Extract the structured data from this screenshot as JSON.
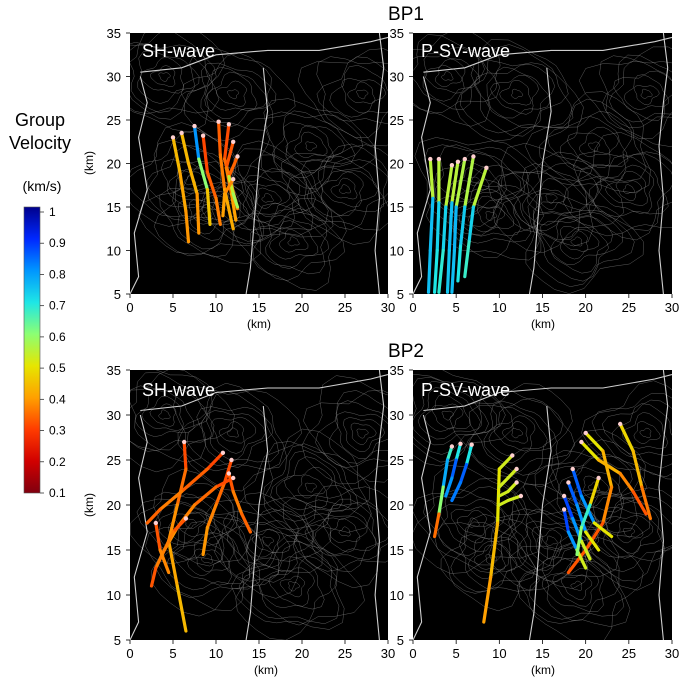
{
  "legend": {
    "title_line1": "Group",
    "title_line2": "Velocity",
    "unit": "(km/s)",
    "ticks": [
      "1",
      "0.9",
      "0.8",
      "0.7",
      "0.6",
      "0.5",
      "0.4",
      "0.3",
      "0.2",
      "0.1"
    ],
    "range": [
      0.1,
      1.0
    ],
    "colormap": "jet",
    "colors": [
      "#80000f",
      "#d10000",
      "#ff3c00",
      "#ffa000",
      "#e6e600",
      "#8cff73",
      "#1ee6e6",
      "#0096ff",
      "#0028ff",
      "#00008c"
    ]
  },
  "sections": [
    {
      "label": "BP1"
    },
    {
      "label": "BP2"
    }
  ],
  "axes": {
    "xlabel": "(km)",
    "ylabel": "(km)",
    "xticks": [
      "0",
      "5",
      "10",
      "15",
      "20",
      "25",
      "30"
    ],
    "yticks": [
      "5",
      "10",
      "15",
      "20",
      "25",
      "30",
      "35"
    ],
    "xlim": [
      0,
      30
    ],
    "ylim": [
      5,
      35
    ]
  },
  "chart_data": [
    {
      "type": "line",
      "section": "BP1",
      "panel_label": "SH-wave",
      "xlim": [
        0,
        30
      ],
      "ylim": [
        5,
        35
      ],
      "series": [
        {
          "x": [
            5.0,
            5.8,
            6.5,
            6.8
          ],
          "y": [
            23.0,
            19.0,
            14.5,
            11.0
          ],
          "v": [
            0.45,
            0.42,
            0.4,
            0.38
          ]
        },
        {
          "x": [
            6.0,
            6.8,
            7.8,
            8.0
          ],
          "y": [
            23.5,
            20.0,
            16.5,
            12.0
          ],
          "v": [
            0.42,
            0.45,
            0.4,
            0.38
          ]
        },
        {
          "x": [
            7.5,
            8.0,
            9.0,
            9.3
          ],
          "y": [
            24.3,
            20.5,
            17.0,
            13.0
          ],
          "v": [
            0.9,
            0.7,
            0.5,
            0.4
          ]
        },
        {
          "x": [
            8.5,
            9.0,
            10.0,
            10.5
          ],
          "y": [
            23.2,
            19.0,
            16.0,
            13.0
          ],
          "v": [
            0.3,
            0.32,
            0.35,
            0.38
          ]
        },
        {
          "x": [
            10.3,
            10.5,
            11.0,
            12.0
          ],
          "y": [
            24.8,
            21.0,
            17.0,
            12.5
          ],
          "v": [
            0.32,
            0.35,
            0.38,
            0.45
          ]
        },
        {
          "x": [
            11.5,
            11.0,
            11.8,
            12.5
          ],
          "y": [
            24.5,
            20.5,
            17.5,
            14.8
          ],
          "v": [
            0.3,
            0.33,
            0.36,
            0.38
          ]
        },
        {
          "x": [
            12.0,
            11.2,
            11.8,
            12.3
          ],
          "y": [
            22.5,
            19.5,
            16.5,
            13.5
          ],
          "v": [
            0.3,
            0.35,
            0.38,
            0.42
          ]
        },
        {
          "x": [
            12.5,
            11.5,
            12.0,
            12.5
          ],
          "y": [
            20.8,
            18.5,
            16.5,
            15.0
          ],
          "v": [
            0.3,
            0.38,
            0.7,
            0.45
          ]
        },
        {
          "x": [
            12.0,
            11.0,
            10.8
          ],
          "y": [
            18.2,
            16.5,
            14.0
          ],
          "v": [
            0.35,
            0.4,
            0.4
          ]
        }
      ]
    },
    {
      "type": "line",
      "section": "BP1",
      "panel_label": "P-SV-wave",
      "xlim": [
        0,
        30
      ],
      "ylim": [
        5,
        35
      ],
      "series": [
        {
          "x": [
            2.0,
            2.3,
            2.0,
            1.8
          ],
          "y": [
            20.5,
            16.0,
            10.0,
            5.2
          ],
          "v": [
            0.4,
            0.7,
            0.8,
            0.7
          ]
        },
        {
          "x": [
            3.0,
            3.0,
            2.8,
            2.5
          ],
          "y": [
            20.5,
            15.5,
            10.0,
            5.2
          ],
          "v": [
            0.4,
            0.7,
            0.75,
            0.65
          ]
        },
        {
          "x": [
            4.5,
            3.8,
            3.5,
            3.0
          ],
          "y": [
            19.8,
            15.0,
            10.0,
            5.2
          ],
          "v": [
            0.4,
            0.7,
            0.75,
            0.62
          ]
        },
        {
          "x": [
            5.2,
            4.5,
            4.2,
            4.0
          ],
          "y": [
            20.2,
            15.5,
            10.0,
            5.2
          ],
          "v": [
            0.4,
            0.7,
            0.8,
            0.68
          ]
        },
        {
          "x": [
            6.0,
            5.0,
            4.8,
            4.5
          ],
          "y": [
            20.5,
            15.0,
            10.0,
            5.2
          ],
          "v": [
            0.4,
            0.72,
            0.8,
            0.7
          ]
        },
        {
          "x": [
            7.0,
            6.0,
            5.5,
            5.2
          ],
          "y": [
            20.8,
            15.0,
            10.5,
            6.5
          ],
          "v": [
            0.4,
            0.72,
            0.75,
            0.65
          ]
        },
        {
          "x": [
            8.5,
            7.0,
            6.5,
            6.0
          ],
          "y": [
            19.5,
            15.0,
            11.0,
            7.0
          ],
          "v": [
            0.4,
            0.7,
            0.75,
            0.6
          ]
        }
      ]
    },
    {
      "type": "line",
      "section": "BP2",
      "panel_label": "SH-wave",
      "xlim": [
        0,
        30
      ],
      "ylim": [
        5,
        35
      ],
      "series": [
        {
          "x": [
            6.3,
            6.5,
            5.5,
            4.5,
            5.5,
            6.5
          ],
          "y": [
            27.0,
            24.0,
            20.0,
            16.0,
            11.0,
            6.0
          ],
          "v": [
            0.3,
            0.33,
            0.37,
            0.4,
            0.42,
            0.45
          ]
        },
        {
          "x": [
            10.8,
            9.0,
            6.0,
            3.5,
            2.0
          ],
          "y": [
            25.8,
            24.0,
            21.5,
            19.5,
            18.0
          ],
          "v": [
            0.3,
            0.32,
            0.35,
            0.38,
            0.3
          ]
        },
        {
          "x": [
            11.8,
            11.0,
            10.0,
            9.0,
            8.5
          ],
          "y": [
            25.0,
            22.5,
            20.0,
            17.5,
            14.5
          ],
          "v": [
            0.3,
            0.33,
            0.36,
            0.38,
            0.4
          ]
        },
        {
          "x": [
            11.5,
            12.0,
            13.0,
            14.0
          ],
          "y": [
            23.5,
            21.5,
            19.0,
            17.0
          ],
          "v": [
            0.3,
            0.35,
            0.38,
            0.3
          ]
        },
        {
          "x": [
            12.0,
            10.0,
            7.5,
            5.5,
            4.0
          ],
          "y": [
            23.0,
            22.0,
            20.0,
            17.5,
            15.0
          ],
          "v": [
            0.3,
            0.33,
            0.36,
            0.38,
            0.4
          ]
        },
        {
          "x": [
            6.5,
            5.0,
            4.0,
            3.0,
            2.5
          ],
          "y": [
            18.5,
            17.0,
            15.0,
            13.0,
            11.0
          ],
          "v": [
            0.3,
            0.35,
            0.38,
            0.35,
            0.3
          ]
        },
        {
          "x": [
            3.0,
            3.5,
            4.5
          ],
          "y": [
            18.0,
            15.0,
            12.5
          ],
          "v": [
            0.3,
            0.35,
            0.4
          ]
        }
      ]
    },
    {
      "type": "line",
      "section": "BP2",
      "panel_label": "P-SV-wave",
      "xlim": [
        0,
        30
      ],
      "ylim": [
        5,
        35
      ],
      "series": [
        {
          "x": [
            4.5,
            4.0,
            3.5,
            3.0,
            2.5
          ],
          "y": [
            26.5,
            25.0,
            22.0,
            19.0,
            16.5
          ],
          "v": [
            0.6,
            0.75,
            0.8,
            0.4,
            0.3
          ]
        },
        {
          "x": [
            5.5,
            5.0,
            4.5,
            3.8
          ],
          "y": [
            26.8,
            25.0,
            23.0,
            21.0
          ],
          "v": [
            0.6,
            0.8,
            0.9,
            0.7
          ]
        },
        {
          "x": [
            6.8,
            6.2,
            5.5,
            4.5
          ],
          "y": [
            26.7,
            24.5,
            22.5,
            20.5
          ],
          "v": [
            0.6,
            0.8,
            0.9,
            0.75
          ]
        },
        {
          "x": [
            11.5,
            10.0,
            9.8,
            9.0,
            8.2
          ],
          "y": [
            25.5,
            24.0,
            18.0,
            12.0,
            7.0
          ],
          "v": [
            0.5,
            0.55,
            0.45,
            0.42,
            0.38
          ]
        },
        {
          "x": [
            12.0,
            11.0,
            10.0
          ],
          "y": [
            24.0,
            23.0,
            22.0
          ],
          "v": [
            0.5,
            0.55,
            0.5
          ]
        },
        {
          "x": [
            12.0,
            11.0,
            10.0
          ],
          "y": [
            22.5,
            21.5,
            21.0
          ],
          "v": [
            0.5,
            0.55,
            0.5
          ]
        },
        {
          "x": [
            12.5,
            11.0,
            10.0
          ],
          "y": [
            21.0,
            20.5,
            20.0
          ],
          "v": [
            0.5,
            0.55,
            0.5
          ]
        },
        {
          "x": [
            20.0,
            22.0,
            23.0,
            22.0,
            20.0,
            18.0
          ],
          "y": [
            28.0,
            26.0,
            22.0,
            18.0,
            15.0,
            12.5
          ],
          "v": [
            0.55,
            0.45,
            0.4,
            0.35,
            0.3,
            0.35
          ]
        },
        {
          "x": [
            24.0,
            25.5,
            26.5,
            27.5
          ],
          "y": [
            29.0,
            26.0,
            22.0,
            18.5
          ],
          "v": [
            0.5,
            0.45,
            0.42,
            0.3
          ]
        },
        {
          "x": [
            19.5,
            21.5,
            24.0,
            25.5,
            27.0
          ],
          "y": [
            27.0,
            25.0,
            23.5,
            21.5,
            19.0
          ],
          "v": [
            0.55,
            0.45,
            0.4,
            0.35,
            0.3
          ]
        },
        {
          "x": [
            18.5,
            19.5,
            21.0,
            23.0
          ],
          "y": [
            24.0,
            21.0,
            18.0,
            16.5
          ],
          "v": [
            0.8,
            0.9,
            0.7,
            0.3
          ]
        },
        {
          "x": [
            18.0,
            19.0,
            20.0,
            21.5
          ],
          "y": [
            22.5,
            20.0,
            17.0,
            15.0
          ],
          "v": [
            0.8,
            0.9,
            0.7,
            0.3
          ]
        },
        {
          "x": [
            17.5,
            18.5,
            19.5,
            20.5
          ],
          "y": [
            21.0,
            18.5,
            16.0,
            14.0
          ],
          "v": [
            0.85,
            0.9,
            0.7,
            0.35
          ]
        },
        {
          "x": [
            17.5,
            18.0,
            19.0,
            20.0
          ],
          "y": [
            19.5,
            17.0,
            15.0,
            13.0
          ],
          "v": [
            0.85,
            0.9,
            0.7,
            0.35
          ]
        },
        {
          "x": [
            21.5,
            20.5,
            19.5,
            19.0
          ],
          "y": [
            23.0,
            20.0,
            17.5,
            14.5
          ],
          "v": [
            0.4,
            0.55,
            0.8,
            0.4
          ]
        }
      ]
    }
  ]
}
